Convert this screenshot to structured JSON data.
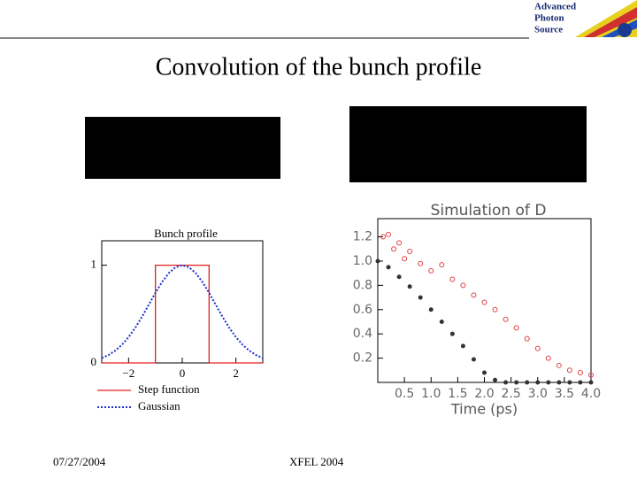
{
  "slide": {
    "title": "Convolution of the bunch profile",
    "logo": [
      "Advanced",
      "Photon",
      "Source"
    ],
    "footer_date": "07/27/2004",
    "footer_event": "XFEL 2004"
  },
  "chart_data": [
    {
      "type": "line",
      "title": "Bunch profile",
      "xlim": [
        -3,
        3
      ],
      "ylim": [
        0,
        1.25
      ],
      "xticks": [
        {
          "value": -2,
          "label": "−2"
        },
        0,
        2
      ],
      "yticks": [
        0,
        1
      ],
      "legend": "bottom",
      "series": [
        {
          "name": "Step function",
          "color": "#e02020",
          "line_style": "solid",
          "x": [
            -3,
            -1,
            -1,
            1,
            1,
            3
          ],
          "values": [
            0,
            0,
            1,
            1,
            0,
            0
          ]
        },
        {
          "name": "Gaussian",
          "color": "#1a2fd0",
          "line_style": "dotted",
          "x": [
            -3,
            -2.75,
            -2.5,
            -2.25,
            -2,
            -1.75,
            -1.5,
            -1.25,
            -1,
            -0.75,
            -0.5,
            -0.25,
            0,
            0.25,
            0.5,
            0.75,
            1,
            1.25,
            1.5,
            1.75,
            2,
            2.25,
            2.5,
            2.75,
            3
          ],
          "values": [
            0.05,
            0.08,
            0.125,
            0.185,
            0.264,
            0.36,
            0.472,
            0.594,
            0.717,
            0.829,
            0.92,
            0.979,
            1,
            0.979,
            0.92,
            0.829,
            0.717,
            0.594,
            0.472,
            0.36,
            0.264,
            0.185,
            0.125,
            0.08,
            0.05
          ]
        }
      ]
    },
    {
      "type": "scatter",
      "title": "Simulation of D",
      "x_label": "Time (ps)",
      "xlim": [
        0,
        4.0
      ],
      "ylim": [
        0,
        1.35
      ],
      "xticks": [
        0.5,
        {
          "value": 1,
          "label": "1.0"
        },
        1.5,
        {
          "value": 2,
          "label": "2.0"
        },
        2.5,
        {
          "value": 3,
          "label": "3.0"
        },
        3.5,
        {
          "value": 4,
          "label": "4.0"
        }
      ],
      "yticks": [
        0.2,
        0.4,
        0.6,
        0.8,
        {
          "value": 1,
          "label": "1.0"
        },
        1.2
      ],
      "series": [
        {
          "color": "#e04040",
          "marker": "open-circle",
          "x": [
            0.1,
            0.2,
            0.3,
            0.4,
            0.5,
            0.6,
            0.8,
            1.0,
            1.2,
            1.4,
            1.6,
            1.8,
            2.0,
            2.2,
            2.4,
            2.6,
            2.8,
            3.0,
            3.2,
            3.4,
            3.6,
            3.8,
            4.0
          ],
          "values": [
            1.2,
            1.22,
            1.1,
            1.15,
            1.02,
            1.08,
            0.98,
            0.92,
            0.97,
            0.85,
            0.8,
            0.72,
            0.66,
            0.6,
            0.52,
            0.45,
            0.36,
            0.28,
            0.2,
            0.14,
            0.1,
            0.08,
            0.06
          ]
        },
        {
          "color": "#333333",
          "marker": "dot",
          "x": [
            0.0,
            0.2,
            0.4,
            0.6,
            0.8,
            1.0,
            1.2,
            1.4,
            1.6,
            1.8,
            2.0,
            2.2,
            2.4,
            2.6,
            2.8,
            3.0,
            3.2,
            3.4,
            3.6,
            3.8,
            4.0
          ],
          "values": [
            1.0,
            0.95,
            0.87,
            0.79,
            0.7,
            0.6,
            0.5,
            0.4,
            0.3,
            0.19,
            0.08,
            0.02,
            0,
            0,
            0,
            0,
            0,
            0,
            0,
            0,
            0
          ]
        }
      ]
    }
  ]
}
